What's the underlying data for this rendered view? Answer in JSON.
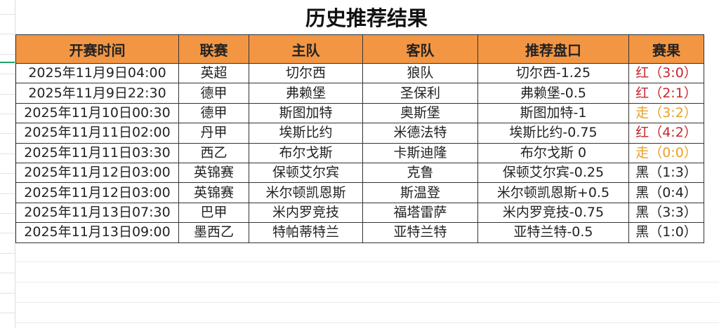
{
  "title": "历史推荐结果",
  "headers": [
    "开赛时间",
    "联赛",
    "主队",
    "客队",
    "推荐盘口",
    "赛果"
  ],
  "rows": [
    {
      "time": "2025年11月9日04:00",
      "league": "英超",
      "home": "切尔西",
      "away": "狼队",
      "pick": "切尔西-1.25",
      "result": "红（3:0）",
      "status": "red"
    },
    {
      "time": "2025年11月9日22:30",
      "league": "德甲",
      "home": "弗赖堡",
      "away": "圣保利",
      "pick": "弗赖堡-0.5",
      "result": "红（2:1）",
      "status": "red"
    },
    {
      "time": "2025年11月10日00:30",
      "league": "德甲",
      "home": "斯图加特",
      "away": "奥斯堡",
      "pick": "斯图加特-1",
      "result": "走（3:2）",
      "status": "orange"
    },
    {
      "time": "2025年11月11日02:00",
      "league": "丹甲",
      "home": "埃斯比约",
      "away": "米德法特",
      "pick": "埃斯比约-0.75",
      "result": "红（4:2）",
      "status": "red"
    },
    {
      "time": "2025年11月11日03:30",
      "league": "西乙",
      "home": "布尔戈斯",
      "away": "卡斯迪隆",
      "pick": "布尔戈斯 0",
      "result": "走（0:0）",
      "status": "orange"
    },
    {
      "time": "2025年11月12日03:00",
      "league": "英锦赛",
      "home": "保顿艾尔宾",
      "away": "克鲁",
      "pick": "保顿艾尔宾-0.25",
      "result": "黑（1:3）",
      "status": "black"
    },
    {
      "time": "2025年11月12日03:00",
      "league": "英锦赛",
      "home": "米尔顿凯恩斯",
      "away": "斯温登",
      "pick": "米尔顿凯恩斯+0.5",
      "result": "黑（0:4）",
      "status": "black"
    },
    {
      "time": "2025年11月13日07:30",
      "league": "巴甲",
      "home": "米内罗竞技",
      "away": "福塔雷萨",
      "pick": "米内罗竞技-0.75",
      "result": "黑（3:3）",
      "status": "black"
    },
    {
      "time": "2025年11月13日09:00",
      "league": "墨西乙",
      "home": "特帕蒂特兰",
      "away": "亚特兰特",
      "pick": "亚特兰特-0.5",
      "result": "黑（1:0）",
      "status": "black"
    }
  ],
  "colors": {
    "header": "#f29644",
    "red": "#c4262e",
    "orange": "#e8a024",
    "black": "#222222"
  }
}
